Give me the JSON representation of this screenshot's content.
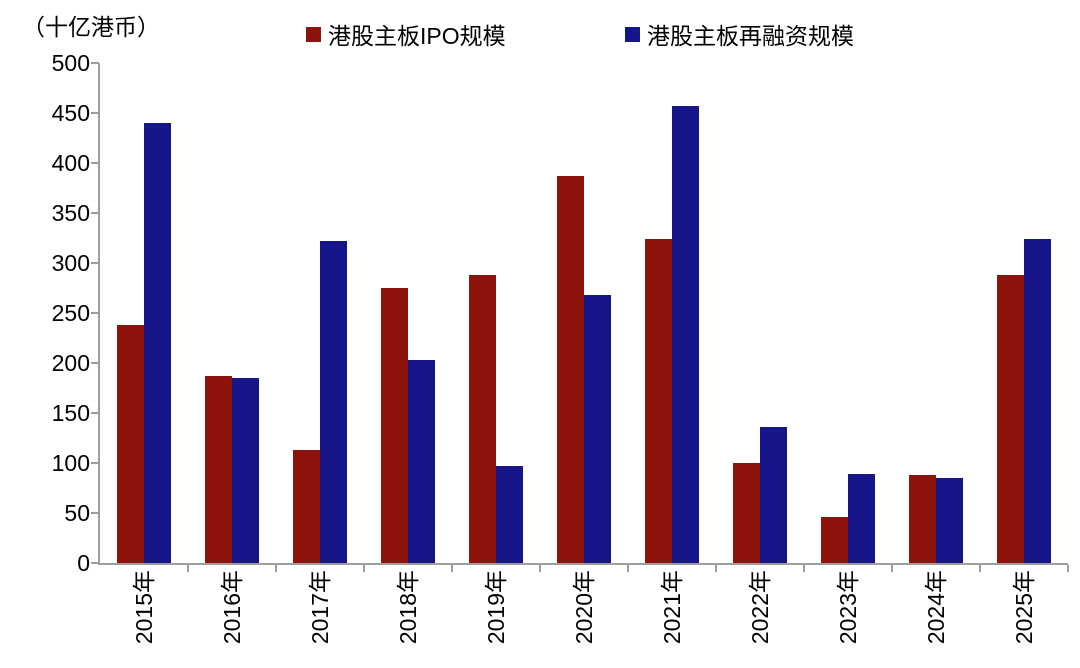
{
  "chart_data": {
    "type": "bar",
    "title": "",
    "unit_label": "（十亿港币）",
    "xlabel": "",
    "ylabel": "十亿港币",
    "ylim": [
      0,
      500
    ],
    "ytick_step": 50,
    "grid": false,
    "legend_position": "top",
    "categories": [
      "2015年",
      "2016年",
      "2017年",
      "2018年",
      "2019年",
      "2020年",
      "2021年",
      "2022年",
      "2023年",
      "2024年",
      "2025年"
    ],
    "series": [
      {
        "key": "ipo",
        "name": "港股主板IPO规模",
        "color": "#8C140C",
        "values": [
          238,
          187,
          113,
          275,
          288,
          387,
          324,
          100,
          46,
          88,
          288
        ]
      },
      {
        "key": "refinancing",
        "name": "港股主板再融资规模",
        "color": "#16168A",
        "values": [
          440,
          185,
          322,
          203,
          97,
          268,
          457,
          136,
          89,
          85,
          324
        ]
      }
    ],
    "axis_color": "#9e9e9e",
    "text_color": "#000000"
  }
}
